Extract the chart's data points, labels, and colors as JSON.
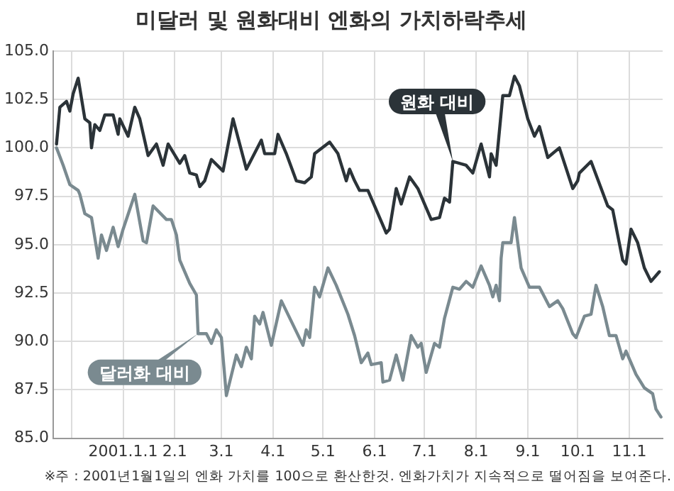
{
  "chart_data": {
    "type": "line",
    "title": "미달러 및 원화대비 엔화의 가치하락추세",
    "annotations": [
      "※주 : 2001년1월1일의 엔화 가치를 100으로 환산한것. 엔화가치가 지속적으로 떨어짐을 보여준다."
    ],
    "xlim": [
      "2000-11-20",
      "2001-11-21"
    ],
    "xticks": [
      {
        "value": "2000-12-01",
        "label": null
      },
      {
        "value": "2001-01-01",
        "label": "2001.1.1"
      },
      {
        "value": "2001-02-01",
        "label": "2.1"
      },
      {
        "value": "2001-03-01",
        "label": "3.1"
      },
      {
        "value": "2001-04-01",
        "label": "4.1"
      },
      {
        "value": "2001-05-01",
        "label": "5.1"
      },
      {
        "value": "2001-06-01",
        "label": "6.1"
      },
      {
        "value": "2001-07-01",
        "label": "7.1"
      },
      {
        "value": "2001-08-01",
        "label": "8.1"
      },
      {
        "value": "2001-09-01",
        "label": "9.1"
      },
      {
        "value": "2001-10-01",
        "label": "10.1"
      },
      {
        "value": "2001-11-01",
        "label": "11.1"
      }
    ],
    "ylim": [
      85,
      105
    ],
    "yticks": [
      {
        "value": 85,
        "label": "85.0"
      },
      {
        "value": 87.5,
        "label": "87.5"
      },
      {
        "value": 90,
        "label": "90.0"
      },
      {
        "value": 92.5,
        "label": "92.5"
      },
      {
        "value": 95,
        "label": "95.0"
      },
      {
        "value": 97.5,
        "label": "97.5"
      },
      {
        "value": 100,
        "label": "100.0"
      },
      {
        "value": 102.5,
        "label": "102.5"
      },
      {
        "value": 105,
        "label": "105.0"
      }
    ],
    "grid": true,
    "legend": false,
    "marker": "none",
    "line_style": "solid",
    "series": [
      {
        "name": "원화 대비",
        "color": "#2b3338",
        "x": [
          "2000-11-22",
          "2000-11-24",
          "2000-11-28",
          "2000-11-30",
          "2000-12-02",
          "2000-12-05",
          "2000-12-09",
          "2000-12-12",
          "2000-12-13",
          "2000-12-15",
          "2000-12-18",
          "2000-12-21",
          "2000-12-26",
          "2000-12-29",
          "2000-12-30",
          "2001-01-04",
          "2001-01-08",
          "2001-01-11",
          "2001-01-16",
          "2001-01-21",
          "2001-01-25",
          "2001-01-28",
          "2001-02-04",
          "2001-02-07",
          "2001-02-10",
          "2001-02-14",
          "2001-02-16",
          "2001-02-19",
          "2001-02-23",
          "2001-03-02",
          "2001-03-08",
          "2001-03-16",
          "2001-03-25",
          "2001-03-27",
          "2001-04-02",
          "2001-04-04",
          "2001-04-09",
          "2001-04-15",
          "2001-04-20",
          "2001-04-24",
          "2001-04-26",
          "2001-05-05",
          "2001-05-10",
          "2001-05-15",
          "2001-05-17",
          "2001-05-20",
          "2001-05-23",
          "2001-05-28",
          "2001-06-08",
          "2001-06-10",
          "2001-06-14",
          "2001-06-17",
          "2001-06-22",
          "2001-06-27",
          "2001-07-05",
          "2001-07-10",
          "2001-07-13",
          "2001-07-16",
          "2001-07-18",
          "2001-07-26",
          "2001-07-30",
          "2001-08-04",
          "2001-08-09",
          "2001-08-10",
          "2001-08-13",
          "2001-08-17",
          "2001-08-21",
          "2001-08-24",
          "2001-08-27",
          "2001-09-01",
          "2001-09-05",
          "2001-09-08",
          "2001-09-13",
          "2001-09-20",
          "2001-09-28",
          "2001-10-01",
          "2001-10-02",
          "2001-10-09",
          "2001-10-19",
          "2001-10-22",
          "2001-10-28",
          "2001-10-30",
          "2001-11-02",
          "2001-11-06",
          "2001-11-10",
          "2001-11-14",
          "2001-11-19"
        ],
        "values": [
          100.2,
          102.1,
          102.4,
          101.9,
          102.8,
          103.6,
          101.5,
          101.3,
          100,
          101.2,
          100.9,
          101.7,
          101.7,
          100.7,
          101.5,
          100.6,
          102.1,
          101.5,
          99.6,
          100.2,
          99.1,
          100.2,
          99.2,
          99.6,
          98.7,
          98.6,
          98,
          98.3,
          99.4,
          98.8,
          101.5,
          98.9,
          100.4,
          99.7,
          99.7,
          100.7,
          99.7,
          98.3,
          98.2,
          98.5,
          99.7,
          100.3,
          99.7,
          98.3,
          98.9,
          98.3,
          97.8,
          97.8,
          95.6,
          95.8,
          97.9,
          97.1,
          98.5,
          97.9,
          96.3,
          96.4,
          97.4,
          97.2,
          99.3,
          99.1,
          98.7,
          100.2,
          98.5,
          99.7,
          99.1,
          102.7,
          102.7,
          103.7,
          103.2,
          101.5,
          100.6,
          101.1,
          99.5,
          100,
          97.9,
          98.3,
          98.7,
          99.3,
          97,
          96.8,
          94.2,
          94,
          95.8,
          95.1,
          93.8,
          93.1,
          93.6
        ]
      },
      {
        "name": "달러화 대비",
        "color": "#7a8a90",
        "x": [
          "2000-11-22",
          "2000-11-26",
          "2000-11-30",
          "2000-12-05",
          "2000-12-06",
          "2000-12-09",
          "2000-12-13",
          "2000-12-17",
          "2000-12-19",
          "2000-12-22",
          "2000-12-26",
          "2000-12-29",
          "2001-01-01",
          "2001-01-08",
          "2001-01-13",
          "2001-01-15",
          "2001-01-19",
          "2001-01-27",
          "2001-01-30",
          "2001-02-02",
          "2001-02-04",
          "2001-02-10",
          "2001-02-14",
          "2001-02-15",
          "2001-02-20",
          "2001-02-23",
          "2001-02-26",
          "2001-03-01",
          "2001-03-04",
          "2001-03-10",
          "2001-03-13",
          "2001-03-16",
          "2001-03-19",
          "2001-03-21",
          "2001-03-24",
          "2001-03-26",
          "2001-03-31",
          "2001-04-06",
          "2001-04-19",
          "2001-04-21",
          "2001-04-23",
          "2001-04-26",
          "2001-04-29",
          "2001-05-04",
          "2001-05-09",
          "2001-05-16",
          "2001-05-20",
          "2001-05-24",
          "2001-05-28",
          "2001-05-30",
          "2001-06-05",
          "2001-06-06",
          "2001-06-10",
          "2001-06-14",
          "2001-06-18",
          "2001-06-23",
          "2001-06-27",
          "2001-06-29",
          "2001-07-02",
          "2001-07-07",
          "2001-07-10",
          "2001-07-13",
          "2001-07-18",
          "2001-07-22",
          "2001-07-26",
          "2001-07-30",
          "2001-08-04",
          "2001-08-09",
          "2001-08-11",
          "2001-08-13",
          "2001-08-15",
          "2001-08-16",
          "2001-08-17",
          "2001-08-22",
          "2001-08-24",
          "2001-08-28",
          "2001-09-02",
          "2001-09-08",
          "2001-09-14",
          "2001-09-19",
          "2001-09-22",
          "2001-09-28",
          "2001-09-30",
          "2001-10-05",
          "2001-10-09",
          "2001-10-12",
          "2001-10-16",
          "2001-10-20",
          "2001-10-24",
          "2001-10-28",
          "2001-10-30",
          "2001-11-05",
          "2001-11-10",
          "2001-11-15",
          "2001-11-17",
          "2001-11-20"
        ],
        "values": [
          100,
          99.1,
          98.1,
          97.8,
          97.6,
          96.6,
          96.4,
          94.3,
          95.5,
          94.7,
          95.9,
          94.9,
          95.8,
          97.6,
          95.2,
          95.1,
          97,
          96.3,
          96.3,
          95.5,
          94.2,
          93,
          92.4,
          90.4,
          90.4,
          89.9,
          90.6,
          90.2,
          87.2,
          89.3,
          88.7,
          89.7,
          89.1,
          91.3,
          90.9,
          91.5,
          89.8,
          92.1,
          89.8,
          90.6,
          90.2,
          92.8,
          92.3,
          93.8,
          92.9,
          91.4,
          90.3,
          88.9,
          89.4,
          88.8,
          88.9,
          87.9,
          88,
          89.3,
          88,
          90.3,
          89.7,
          89.9,
          88.4,
          89.9,
          89.7,
          91.2,
          92.8,
          92.7,
          93.1,
          92.8,
          93.9,
          92.9,
          92.3,
          92.9,
          92.1,
          94.3,
          95.1,
          95.1,
          96.4,
          93.8,
          92.8,
          92.8,
          91.8,
          92.1,
          91.7,
          90.4,
          90.2,
          91.3,
          91.4,
          92.9,
          91.8,
          90.3,
          90.3,
          89.1,
          89.5,
          88.3,
          87.6,
          87.3,
          86.5,
          86.1
        ]
      }
    ]
  }
}
